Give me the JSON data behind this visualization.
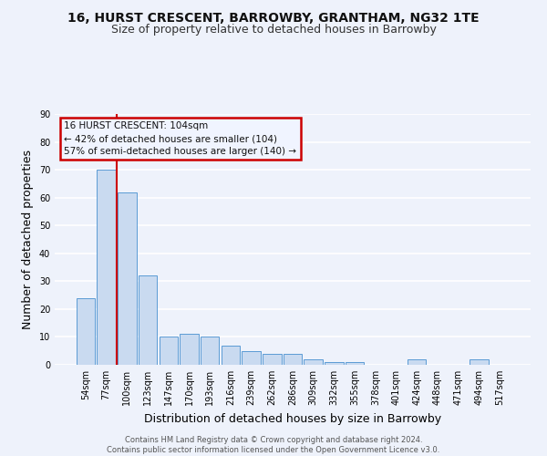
{
  "title": "16, HURST CRESCENT, BARROWBY, GRANTHAM, NG32 1TE",
  "subtitle": "Size of property relative to detached houses in Barrowby",
  "xlabel": "Distribution of detached houses by size in Barrowby",
  "ylabel": "Number of detached properties",
  "categories": [
    "54sqm",
    "77sqm",
    "100sqm",
    "123sqm",
    "147sqm",
    "170sqm",
    "193sqm",
    "216sqm",
    "239sqm",
    "262sqm",
    "286sqm",
    "309sqm",
    "332sqm",
    "355sqm",
    "378sqm",
    "401sqm",
    "424sqm",
    "448sqm",
    "471sqm",
    "494sqm",
    "517sqm"
  ],
  "values": [
    24,
    70,
    62,
    32,
    10,
    11,
    10,
    7,
    5,
    4,
    4,
    2,
    1,
    1,
    0,
    0,
    2,
    0,
    0,
    2,
    0
  ],
  "bar_color": "#c9daf0",
  "bar_edge_color": "#5b9bd5",
  "highlight_index": 2,
  "highlight_line_color": "#cc0000",
  "ylim": [
    0,
    90
  ],
  "yticks": [
    0,
    10,
    20,
    30,
    40,
    50,
    60,
    70,
    80,
    90
  ],
  "annotation_box_text": "16 HURST CRESCENT: 104sqm\n← 42% of detached houses are smaller (104)\n57% of semi-detached houses are larger (140) →",
  "annotation_box_edge_color": "#cc0000",
  "footer_text": "Contains HM Land Registry data © Crown copyright and database right 2024.\nContains public sector information licensed under the Open Government Licence v3.0.",
  "background_color": "#eef2fb",
  "grid_color": "#ffffff",
  "title_fontsize": 10,
  "subtitle_fontsize": 9,
  "axis_label_fontsize": 9,
  "tick_fontsize": 7,
  "footer_fontsize": 6
}
